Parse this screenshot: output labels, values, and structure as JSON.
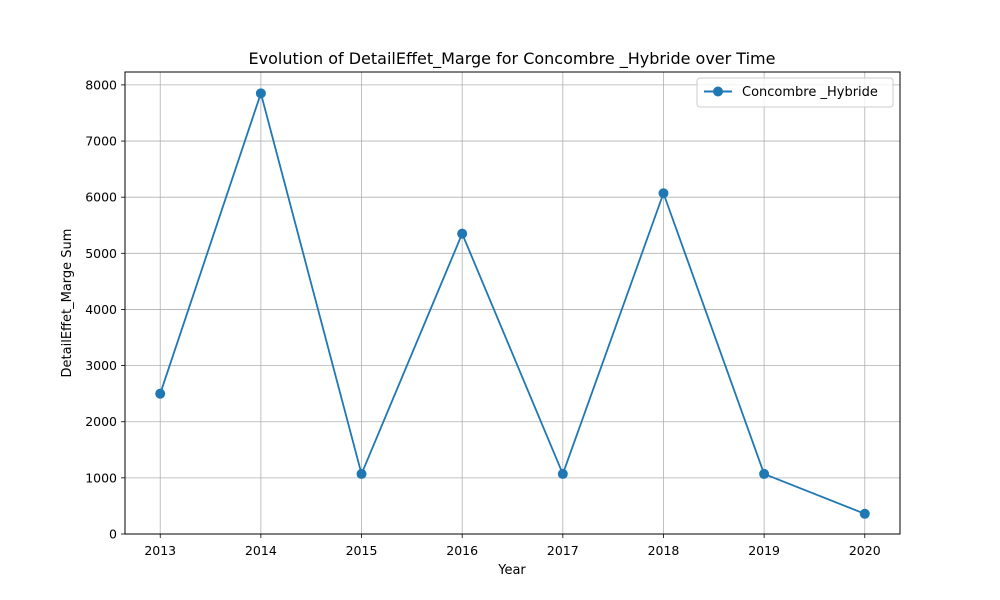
{
  "chart_data": {
    "type": "line",
    "title": "Evolution of DetailEffet_Marge for Concombre _Hybride over Time",
    "xlabel": "Year",
    "ylabel": "DetailEffet_Marge Sum",
    "x": [
      2013,
      2014,
      2015,
      2016,
      2017,
      2018,
      2019,
      2020
    ],
    "x_tick_labels": [
      "2013",
      "2014",
      "2015",
      "2016",
      "2017",
      "2018",
      "2019",
      "2020"
    ],
    "y_ticks": [
      0,
      1000,
      2000,
      3000,
      4000,
      5000,
      6000,
      7000,
      8000
    ],
    "y_tick_labels": [
      "0",
      "1000",
      "2000",
      "3000",
      "4000",
      "5000",
      "6000",
      "7000",
      "8000"
    ],
    "xlim": [
      2012.65,
      2020.35
    ],
    "ylim": [
      0,
      8230
    ],
    "grid": true,
    "legend_position": "top-right",
    "series": [
      {
        "name": "Concombre _Hybride",
        "color": "#1f77b4",
        "marker": "circle",
        "values": [
          2500,
          7850,
          1070,
          5350,
          1070,
          6070,
          1070,
          360
        ]
      }
    ]
  }
}
